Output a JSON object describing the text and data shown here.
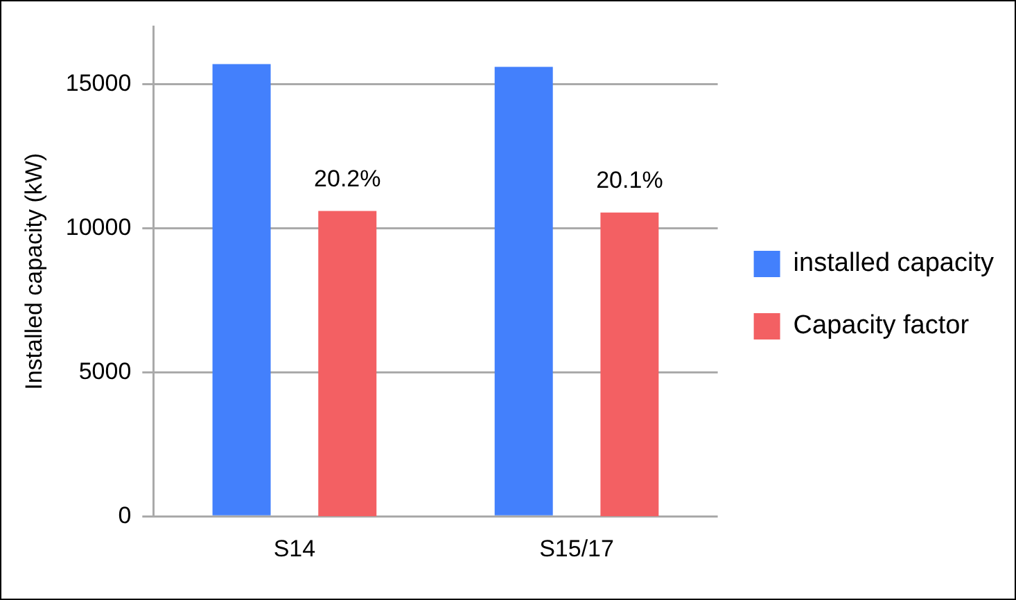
{
  "chart_data": {
    "type": "bar",
    "ylabel": "Installed capacity (kW)",
    "categories": [
      "S14",
      "S15/17"
    ],
    "series": [
      {
        "name": "installed capacity",
        "color": "#4380fc",
        "values": [
          15700,
          15600
        ]
      },
      {
        "name": "Capacity factor",
        "color": "#f36063",
        "values": [
          20.2,
          20.1
        ],
        "axis": "y2",
        "value_labels": [
          "20.2%",
          "20.1%"
        ]
      }
    ],
    "ylim": [
      0,
      17000
    ],
    "y2lim": [
      0,
      32.4
    ],
    "yticks": [
      0,
      5000,
      10000,
      15000
    ],
    "grid": "y",
    "legend": "right"
  }
}
